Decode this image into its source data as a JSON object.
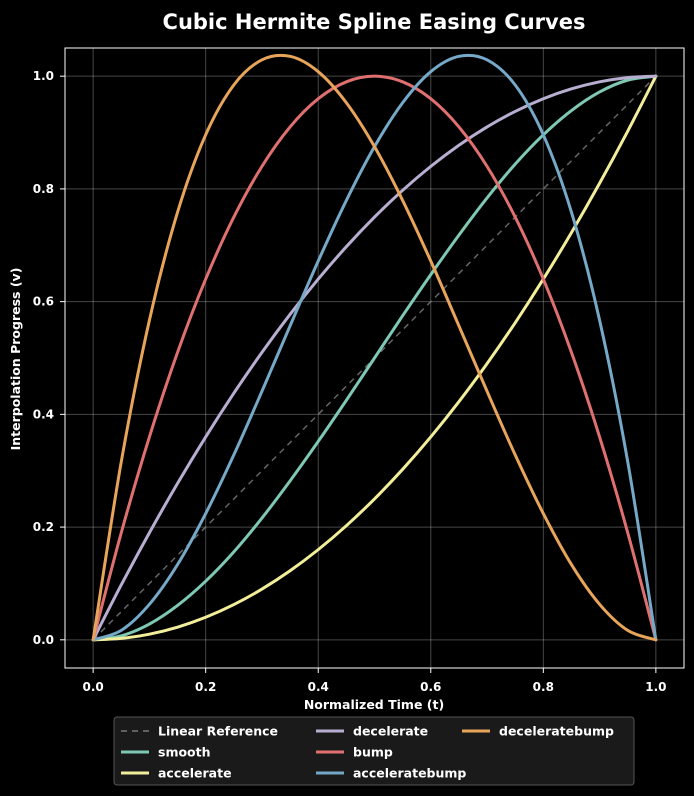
{
  "chart_data": {
    "type": "line",
    "title": "Cubic Hermite Spline Easing Curves",
    "xlabel": "Normalized Time (t)",
    "ylabel": "Interpolation Progress (v)",
    "xlim": [
      -0.05,
      1.05
    ],
    "ylim": [
      -0.05,
      1.05
    ],
    "xticks": [
      0.0,
      0.2,
      0.4,
      0.6,
      0.8,
      1.0
    ],
    "yticks": [
      0.0,
      0.2,
      0.4,
      0.6,
      0.8,
      1.0
    ],
    "tick_labels_x": [
      "0.0",
      "0.2",
      "0.4",
      "0.6",
      "0.8",
      "1.0"
    ],
    "tick_labels_y": [
      "0.0",
      "0.2",
      "0.4",
      "0.6",
      "0.8",
      "1.0"
    ],
    "grid": true,
    "legend_position": "bottom",
    "x": [
      0.0,
      0.05,
      0.1,
      0.15,
      0.2,
      0.25,
      0.3,
      0.35,
      0.4,
      0.45,
      0.5,
      0.55,
      0.6,
      0.65,
      0.7,
      0.75,
      0.8,
      0.85,
      0.9,
      0.95,
      1.0
    ],
    "series": [
      {
        "name": "Linear Reference",
        "color": "#777777",
        "dashed": true,
        "values": [
          0.0,
          0.05,
          0.1,
          0.15,
          0.2,
          0.25,
          0.3,
          0.35,
          0.4,
          0.45,
          0.5,
          0.55,
          0.6,
          0.65,
          0.7,
          0.75,
          0.8,
          0.85,
          0.9,
          0.95,
          1.0
        ]
      },
      {
        "name": "smooth",
        "color": "#7fc8b4",
        "dashed": false,
        "values": [
          0.0,
          0.007,
          0.028,
          0.061,
          0.104,
          0.156,
          0.216,
          0.282,
          0.352,
          0.425,
          0.5,
          0.575,
          0.648,
          0.718,
          0.784,
          0.844,
          0.896,
          0.939,
          0.972,
          0.993,
          1.0
        ]
      },
      {
        "name": "accelerate",
        "color": "#f2ee9a",
        "dashed": false,
        "values": [
          0.0,
          0.0025,
          0.01,
          0.0225,
          0.04,
          0.0625,
          0.09,
          0.1225,
          0.16,
          0.2025,
          0.25,
          0.3025,
          0.36,
          0.4225,
          0.49,
          0.5625,
          0.64,
          0.7225,
          0.81,
          0.9025,
          1.0
        ]
      },
      {
        "name": "decelerate",
        "color": "#b8aed2",
        "dashed": false,
        "values": [
          0.0,
          0.0975,
          0.19,
          0.2775,
          0.36,
          0.4375,
          0.51,
          0.5775,
          0.64,
          0.6975,
          0.75,
          0.7975,
          0.84,
          0.8775,
          0.91,
          0.9375,
          0.96,
          0.9775,
          0.99,
          0.9975,
          1.0
        ]
      },
      {
        "name": "bump",
        "color": "#e07070",
        "dashed": false,
        "values": [
          0.0,
          0.19,
          0.36,
          0.51,
          0.64,
          0.75,
          0.84,
          0.91,
          0.96,
          0.99,
          1.0,
          0.99,
          0.96,
          0.91,
          0.84,
          0.75,
          0.64,
          0.51,
          0.36,
          0.19,
          0.0
        ]
      },
      {
        "name": "acceleratebump",
        "color": "#76a8c8",
        "dashed": false,
        "values": [
          0.0,
          0.0167,
          0.063,
          0.1335,
          0.224,
          0.3281,
          0.441,
          0.5571,
          0.672,
          0.7796,
          0.875,
          0.9529,
          1.008,
          1.0352,
          1.029,
          0.9844,
          0.896,
          0.7586,
          0.567,
          0.3159,
          0.0
        ]
      },
      {
        "name": "deceleratebump",
        "color": "#e8a55a",
        "dashed": false,
        "values": [
          0.0,
          0.3159,
          0.567,
          0.7586,
          0.896,
          0.9844,
          1.029,
          1.0352,
          1.008,
          0.9529,
          0.875,
          0.7796,
          0.672,
          0.5571,
          0.441,
          0.3281,
          0.224,
          0.1335,
          0.063,
          0.0167,
          0.0
        ]
      }
    ]
  }
}
